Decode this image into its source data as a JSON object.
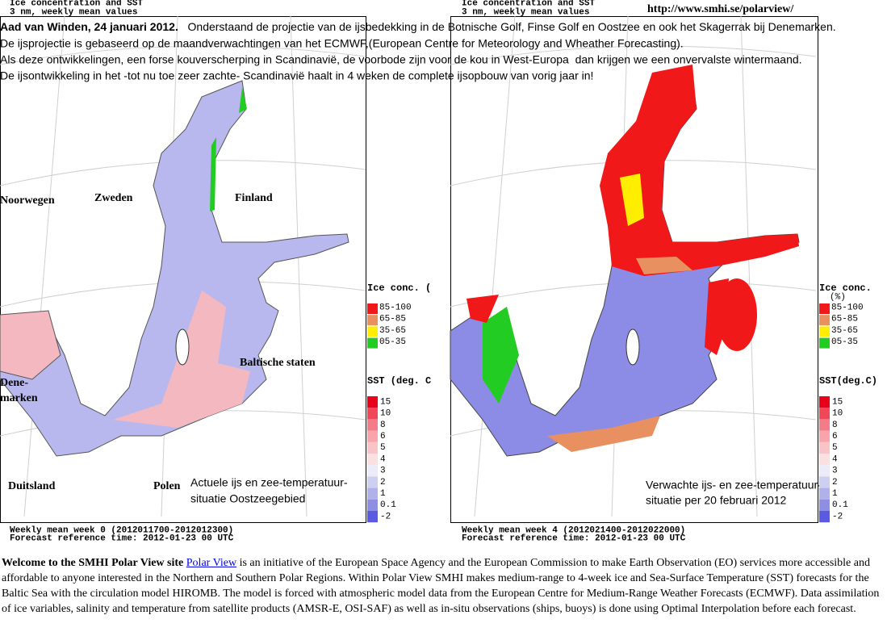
{
  "header": {
    "left": {
      "title": "Ice concentration and SST",
      "subtitle": "3 nm, weekly mean values"
    },
    "right": {
      "title": "Ice concentration and SST",
      "subtitle": "3 nm, weekly mean values"
    },
    "url": "http://www.smhi.se/polarview/"
  },
  "intro": {
    "author": "Aad van Winden, 24 januari 2012.",
    "lines": [
      "   Onderstaand de projectie van de ijsbedekking in de Botnische Golf, Finse Golf en Oostzee en ook het Skagerrak bij Denemarken.",
      "De ijsprojectie is gebaseerd op de maandverwachtingen van het ECMWF,(European Centre for Meteorology and Wheather Forecasting).",
      "Als deze ontwikkelingen, een forse kouverscherping in Scandinavië, de voorbode zijn voor de kou in West-Europa  dan krijgen we een onvervalste wintermaand.",
      "De ijsontwikkeling in het -tot nu toe zeer zachte- Scandinavië haalt in 4 weken de complete ijsopbouw van vorig jaar in!"
    ]
  },
  "left_map": {
    "labels": [
      "Noorwegen",
      "Zweden",
      "Finland",
      "Baltische staten",
      "Dene-",
      "marken",
      "Duitsland",
      "Polen"
    ],
    "caption": [
      "Actuele ijs en zee-temperatuur-",
      "situatie Oostzeegebied"
    ],
    "footer": [
      "Weekly mean week 0 (2012011700-2012012300)",
      "Forecast reference time: 2012-01-23 00 UTC"
    ],
    "legend": {
      "ice_title": "Ice conc. (",
      "ice_classes": [
        "85-100",
        "65-85",
        "35-65",
        "05-35"
      ],
      "sst_title": "SST (deg. C",
      "sst_classes": [
        "15",
        "10",
        "8",
        "6",
        "5",
        "4",
        "3",
        "2",
        "1",
        "0.1",
        "-2"
      ]
    }
  },
  "right_map": {
    "caption": [
      "Verwachte ijs- en zee-temperatuur-",
      "situatie per 20 februari 2012"
    ],
    "footer": [
      "Weekly mean week 4 (2012021400-2012022000)",
      "Forecast reference time: 2012-01-23 00 UTC"
    ],
    "legend": {
      "ice_title": "Ice conc.",
      "ice_unit": "(%)",
      "ice_classes": [
        "85-100",
        "65-85",
        "35-65",
        "05-35"
      ],
      "sst_title": "SST(deg.C)",
      "sst_classes": [
        "15",
        "10",
        "8",
        "6",
        "5",
        "4",
        "3",
        "2",
        "1",
        "0.1",
        "-2"
      ]
    }
  },
  "footer": {
    "bold": "Welcome to the SMHI Polar View site",
    "link": "Polar View",
    "text": " is an initiative of the European Space Agency and the European Commission to make Earth Observation (EO) services more accessible and affordable to anyone interested in the Northern and Southern Polar Regions. Within Polar View SMHI makes medium-range to 4-week ice and Sea-Surface Temperature (SST) forecasts for the Baltic Sea with the circulation model HIROMB. The model is forced with atmospheric model data from the European Centre for Medium-Range Weather Forecasts (ECMWF). Data assimilation of ice variables, salinity and temperature from satellite products (AMSR-E, OSI-SAF) as well as in-situ observations (ships, buoys) is done using Optimal Interpolation before each forecast."
  }
}
